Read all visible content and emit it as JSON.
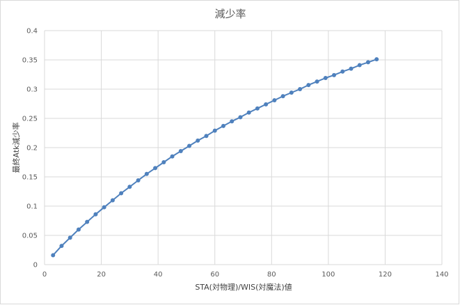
{
  "chart_data": {
    "type": "line",
    "title": "減少率",
    "xlabel": "STA(対物理)/WIS(対魔法)値",
    "ylabel": "最終Atk減少率",
    "xlim": [
      0,
      140
    ],
    "ylim": [
      0,
      0.4
    ],
    "x_ticks": [
      0,
      20,
      40,
      60,
      80,
      100,
      120,
      140
    ],
    "y_ticks": [
      0,
      0.05,
      0.1,
      0.15,
      0.2,
      0.25,
      0.3,
      0.35,
      0.4
    ],
    "x_tick_labels": [
      "0",
      "20",
      "40",
      "60",
      "80",
      "100",
      "120",
      "140"
    ],
    "y_tick_labels": [
      "0",
      "0.05",
      "0.1",
      "0.15",
      "0.2",
      "0.25",
      "0.3",
      "0.35",
      "0.4"
    ],
    "grid": true,
    "legend": "none",
    "series": [
      {
        "color": "#4f81bd",
        "x": [
          3,
          6,
          9,
          12,
          15,
          18,
          21,
          24,
          27,
          30,
          33,
          36,
          39,
          42,
          45,
          48,
          51,
          54,
          57,
          60,
          63,
          66,
          69,
          72,
          75,
          78,
          81,
          84,
          87,
          90,
          93,
          96,
          99,
          102,
          105,
          108,
          111,
          114,
          117
        ],
        "y": [
          0.016,
          0.032,
          0.046,
          0.06,
          0.073,
          0.086,
          0.098,
          0.11,
          0.122,
          0.133,
          0.144,
          0.155,
          0.165,
          0.175,
          0.185,
          0.194,
          0.203,
          0.212,
          0.22,
          0.229,
          0.237,
          0.245,
          0.252,
          0.26,
          0.267,
          0.274,
          0.281,
          0.288,
          0.294,
          0.3,
          0.307,
          0.313,
          0.319,
          0.324,
          0.33,
          0.335,
          0.341,
          0.346,
          0.351
        ]
      }
    ]
  }
}
